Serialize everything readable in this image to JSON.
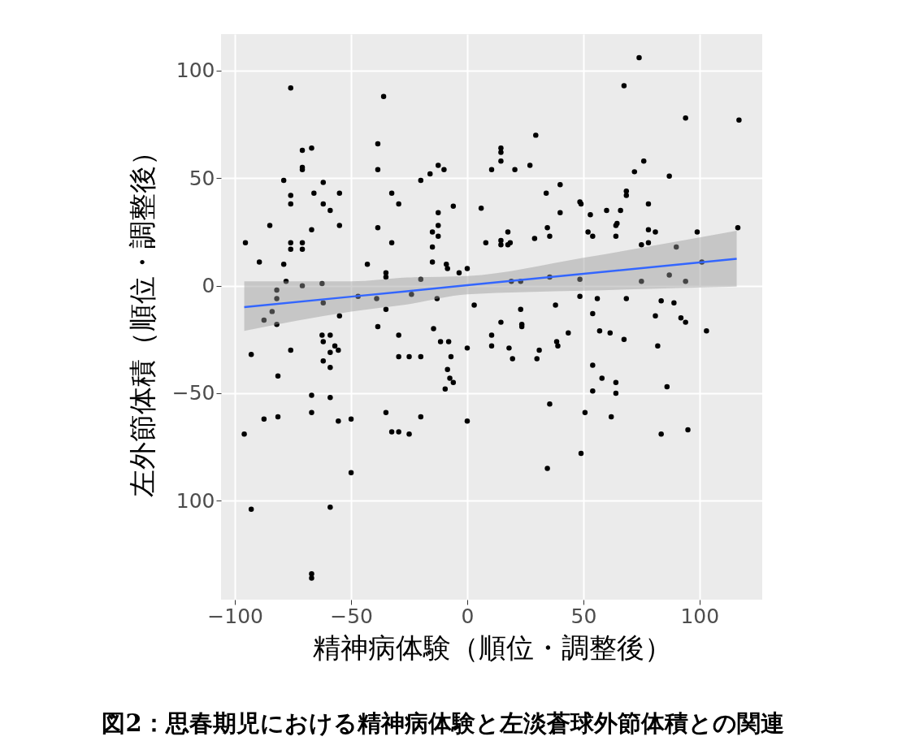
{
  "chart_data": {
    "type": "scatter",
    "title": "図2：思春期児における精神病体験と左淡蒼球外節体積との関連",
    "xlabel": "精神病体験（順位・調整後）",
    "ylabel": "左外節体積（順位・調整後）",
    "xlim": [
      -106,
      127
    ],
    "ylim": [
      -146,
      117
    ],
    "xticks": [
      -100,
      -50,
      0,
      50,
      100
    ],
    "yticks": [
      100,
      50,
      0,
      -50,
      {
        "value": -100,
        "label": "100"
      }
    ],
    "grid": true,
    "marker": "circle",
    "series": [
      {
        "color": "#000000",
        "x": [
          -95.5,
          -96,
          -93,
          -93,
          -89.5,
          -87.5,
          -87.5,
          -85,
          -84,
          -82,
          -82,
          -82,
          -81.5,
          -81.5,
          -79,
          -79,
          -78,
          -76,
          -76,
          -76,
          -76,
          -76,
          -76,
          -71,
          -71,
          -71,
          -71,
          -71,
          -71,
          -67,
          -67,
          -67,
          -67,
          -67,
          -67,
          -66,
          -62,
          -62.5,
          -62,
          -62,
          -62.5,
          -62,
          -62,
          -59,
          -59,
          -59,
          -59,
          -59,
          -59,
          -57,
          -55.5,
          -55,
          -55,
          -55.5,
          -55,
          -50,
          -50,
          -47,
          -43,
          -39,
          -38.5,
          -38.5,
          -38.5,
          -38.5,
          -36,
          -35,
          -35,
          -35,
          -35,
          -32.5,
          -32.5,
          -32.5,
          -29.5,
          -29.5,
          -29.5,
          -29.5,
          -25,
          -25,
          -24,
          -20,
          -20,
          -20,
          -20,
          -16,
          -15,
          -15,
          -15,
          -14.5,
          -12.5,
          -12.5,
          -12.5,
          -12.5,
          -13,
          -11.5,
          -10,
          -9,
          -8.5,
          -8,
          -7,
          -8.5,
          -9.5,
          -7.5,
          -6,
          -6,
          -3.5,
          0,
          0,
          0,
          3,
          6,
          8,
          10.5,
          10.5,
          10.5,
          14.5,
          14.5,
          14.5,
          14.5,
          14.5,
          14.5,
          17.5,
          17.5,
          18,
          18.5,
          19.5,
          19,
          20.5,
          23,
          23,
          23.5,
          23.5,
          27,
          29.5,
          29,
          30,
          31,
          34,
          34.5,
          34.5,
          35.5,
          35.5,
          35.5,
          38.5,
          38,
          39,
          40,
          40,
          43.5,
          48.5,
          49,
          48.5,
          48.5,
          49,
          50.7,
          52,
          53,
          54,
          54,
          54,
          54,
          56,
          57,
          58,
          60,
          61.5,
          62,
          64,
          64,
          64,
          64,
          66,
          64.5,
          67.5,
          67.5,
          68.5,
          68.5,
          68.5,
          72,
          74,
          75,
          75,
          76,
          78,
          78,
          78,
          81,
          81,
          82,
          83.5,
          83.5,
          86,
          87,
          87,
          89,
          90,
          92,
          94,
          94,
          94,
          95,
          99,
          101,
          103,
          117,
          116.5
        ],
        "values": [
          20,
          -69,
          -32,
          -104,
          11,
          -62,
          -16,
          28,
          -12,
          -6,
          -2,
          -18,
          -42,
          -61,
          49,
          10,
          2,
          92,
          42,
          38,
          20,
          17,
          -30,
          63,
          55,
          54,
          20,
          17,
          0,
          64,
          26,
          -51,
          -59,
          -134,
          -136,
          43,
          48,
          1,
          -8,
          38,
          -23,
          -26,
          -35,
          35,
          -23,
          -31,
          -38,
          -52,
          -103,
          -28,
          -30,
          43,
          28,
          -63,
          -14,
          -62,
          -87,
          -5,
          10,
          -6,
          66,
          54,
          27,
          -19,
          88,
          6,
          4,
          -11,
          -59,
          43,
          20,
          -68,
          38,
          -23,
          -33,
          -68,
          -33,
          -69,
          -4,
          -33,
          -61,
          49,
          3,
          52,
          25,
          18,
          11,
          -20,
          56,
          34,
          28,
          23,
          -6,
          -26,
          54,
          10,
          8,
          -26,
          -33,
          -39,
          -48,
          -43,
          -45,
          37,
          6,
          8,
          -29,
          -63,
          -9,
          36,
          20,
          -23,
          -28,
          54,
          58,
          64,
          62,
          21,
          19,
          -17,
          25,
          19,
          -29,
          20,
          -34,
          2,
          54,
          2,
          -11,
          -18,
          -19,
          56,
          70,
          22,
          -34,
          -30,
          43,
          -85,
          27,
          23,
          -55,
          4,
          -26,
          -9,
          -28,
          47,
          34,
          -22,
          39,
          38,
          -5,
          3,
          -78,
          -59,
          25,
          33,
          23,
          -13,
          -37,
          -49,
          -6,
          -21,
          -43,
          35,
          -22,
          -61,
          28,
          23,
          -45,
          -50,
          35,
          29,
          93,
          -25,
          -6,
          42,
          44,
          53,
          106,
          19,
          2,
          58,
          26,
          20,
          38,
          25,
          -14,
          -28,
          -7,
          -69,
          -47,
          51,
          5,
          -8,
          18,
          -15,
          -17,
          2,
          78,
          -67,
          25,
          11,
          -21,
          77,
          27
        ]
      },
      {
        "type": "line",
        "color": "#3366ff",
        "marker": "none",
        "x": [
          -96,
          -50,
          -26,
          0,
          50,
          116
        ],
        "values": [
          -10,
          -5.1,
          -2.6,
          0.2,
          5.5,
          12.5
        ],
        "lower": [
          -21,
          -12,
          -8.7,
          -4,
          -2.3,
          -0.4
        ],
        "upper": [
          2,
          2,
          3.8,
          4.5,
          13,
          25.6
        ]
      }
    ]
  }
}
